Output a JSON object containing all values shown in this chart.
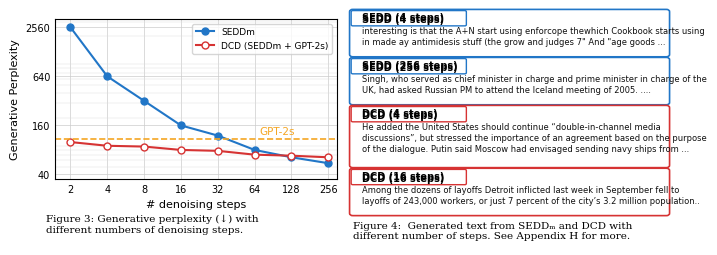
{
  "fig3": {
    "seddm_x": [
      2,
      4,
      8,
      16,
      32,
      64,
      128,
      256
    ],
    "seddm_y": [
      2560,
      640,
      320,
      160,
      120,
      80,
      65,
      55
    ],
    "dcd_x": [
      2,
      4,
      8,
      16,
      32,
      64,
      128,
      256
    ],
    "dcd_y": [
      100,
      90,
      88,
      80,
      78,
      70,
      68,
      65
    ],
    "gpt2s_y": 110,
    "seddm_color": "#2176c7",
    "dcd_color": "#d63333",
    "gpt2s_color": "#f5a623",
    "xlabel": "# denoising steps",
    "ylabel": "Generative Perplexity",
    "yticks": [
      40,
      160,
      640,
      2560
    ],
    "xticks": [
      2,
      4,
      8,
      16,
      32,
      64,
      128,
      256
    ],
    "legend_seddm": "SEDDm",
    "legend_dcd": "DCD (SEDDm + GPT-2s)",
    "legend_gpt2s": "GPT-2s",
    "fig3_caption": "Figure 3: Generative perplexity (↓) with\ndifferent numbers of denoising steps."
  },
  "fig4": {
    "boxes": [
      {
        "label": "SEDD (4 steps)",
        "text": "interesting is that the A+N start using enforcope thewhich Cookbook starts using\nin made ay antimidesis stuff (the grow and judges 7\" And \"age goods ...",
        "color": "#2176c7",
        "rows": 2
      },
      {
        "label": "SEDD (256 steps)",
        "text": "Singh, who served as chief minister in charge and prime minister in charge of the\nUK, had asked Russian PM to attend the Iceland meeting of 2005. ....",
        "color": "#2176c7",
        "rows": 2
      },
      {
        "label": "DCD (4 steps)",
        "text": "He added the United States should continue “double-in-channel media\ndiscussions”, but stressed the importance of an agreement based on the purpose\nof the dialogue. Putin said Moscow had envisaged sending navy ships from ...",
        "color": "#d63333",
        "rows": 3
      },
      {
        "label": "DCD (16 steps)",
        "text": "Among the dozens of layoffs Detroit inflicted last week in September fell to\nlayoffs of 243,000 workers, or just 7 percent of the city’s 3.2 million population..",
        "color": "#d63333",
        "rows": 2
      }
    ],
    "caption": "Figure 4:  Generated text from SEDDₘ and DCD with\ndifferent number of steps. See Appendix H for more."
  }
}
